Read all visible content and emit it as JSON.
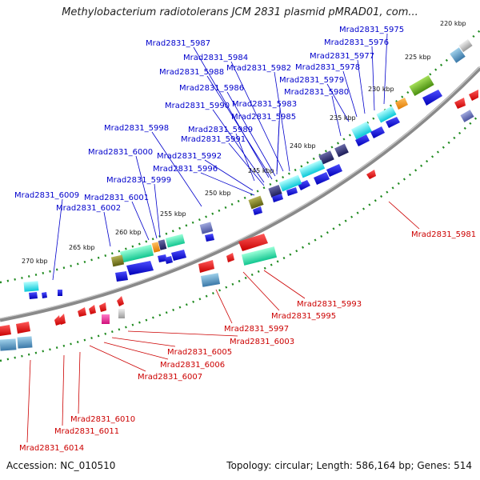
{
  "title": "Methylobacterium radiotolerans JCM 2831 plasmid pMRAD01, com...",
  "footer": {
    "accession": "Accession: NC_010510",
    "summary": "Topology: circular; Length: 586,164 bp; Genes: 514"
  },
  "ruler_labels": [
    "220 kbp",
    "225 kbp",
    "230 kbp",
    "235 kbp",
    "240 kbp",
    "245 kbp",
    "250 kbp",
    "255 kbp",
    "260 kbp",
    "265 kbp",
    "270 kbp"
  ],
  "gene_labels_top": [
    "Mrad2831_5975",
    "Mrad2831_5976",
    "Mrad2831_5977",
    "Mrad2831_5978",
    "Mrad2831_5979",
    "Mrad2831_5980",
    "Mrad2831_5982",
    "Mrad2831_5983",
    "Mrad2831_5984",
    "Mrad2831_5985",
    "Mrad2831_5986",
    "Mrad2831_5987",
    "Mrad2831_5988",
    "Mrad2831_5989",
    "Mrad2831_5990",
    "Mrad2831_5991",
    "Mrad2831_5992",
    "Mrad2831_5996",
    "Mrad2831_5998",
    "Mrad2831_5999",
    "Mrad2831_6000",
    "Mrad2831_6001",
    "Mrad2831_6002",
    "Mrad2831_6009"
  ],
  "gene_labels_bottom": [
    "Mrad2831_5981",
    "Mrad2831_5993",
    "Mrad2831_5995",
    "Mrad2831_5997",
    "Mrad2831_6003",
    "Mrad2831_6005",
    "Mrad2831_6006",
    "Mrad2831_6007",
    "Mrad2831_6010",
    "Mrad2831_6011",
    "Mrad2831_6014"
  ],
  "colors": {
    "forward_label": "#0000cc",
    "reverse_label": "#cc0000",
    "backbone": "#808080",
    "tick": "#008800"
  }
}
